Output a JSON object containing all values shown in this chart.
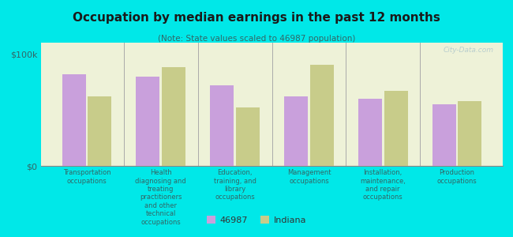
{
  "title": "Occupation by median earnings in the past 12 months",
  "subtitle": "(Note: State values scaled to 46987 population)",
  "categories": [
    "Transportation\noccupations",
    "Health\ndiagnosing and\ntreating\npractitioners\nand other\ntechnical\noccupations",
    "Education,\ntraining, and\nlibrary\noccupations",
    "Management\noccupations",
    "Installation,\nmaintenance,\nand repair\noccupations",
    "Production\noccupations"
  ],
  "values_46987": [
    82000,
    80000,
    72000,
    62000,
    60000,
    55000
  ],
  "values_indiana": [
    62000,
    88000,
    52000,
    90000,
    67000,
    58000
  ],
  "bar_color_46987": "#c9a0dc",
  "bar_color_indiana": "#c8cc8a",
  "background_color": "#00e8e8",
  "plot_bg_color": "#eef2d8",
  "ylim": [
    0,
    110000
  ],
  "yticks": [
    0,
    100000
  ],
  "ytick_labels": [
    "$0",
    "$100k"
  ],
  "legend_label_46987": "46987",
  "legend_label_indiana": "Indiana",
  "watermark": "City-Data.com",
  "title_color": "#1a1a1a",
  "subtitle_color": "#336666",
  "tick_label_color": "#336666",
  "divider_color": "#aaaaaa",
  "watermark_color": "#b0c8cc"
}
